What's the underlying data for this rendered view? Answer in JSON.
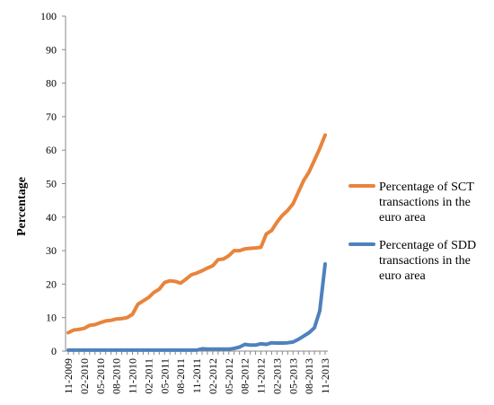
{
  "chart_data": {
    "type": "line",
    "ylabel": "Percentage",
    "ylim": [
      0,
      100
    ],
    "yticks": [
      "0",
      "10",
      "20",
      "30",
      "40",
      "50",
      "60",
      "70",
      "80",
      "90",
      "100"
    ],
    "xtick_labels": [
      "11-2009",
      "02-2010",
      "05-2010",
      "08-2010",
      "11-2010",
      "02-2011",
      "05-2011",
      "08-2011",
      "11-2011",
      "02-2012",
      "05-2012",
      "08-2012",
      "11-2012",
      "02-2013",
      "05-2013",
      "08-2013",
      "11-2013"
    ],
    "x": [
      "11-2009",
      "12-2009",
      "01-2010",
      "02-2010",
      "03-2010",
      "04-2010",
      "05-2010",
      "06-2010",
      "07-2010",
      "08-2010",
      "09-2010",
      "10-2010",
      "11-2010",
      "12-2010",
      "01-2011",
      "02-2011",
      "03-2011",
      "04-2011",
      "05-2011",
      "06-2011",
      "07-2011",
      "08-2011",
      "09-2011",
      "10-2011",
      "11-2011",
      "12-2011",
      "01-2012",
      "02-2012",
      "03-2012",
      "04-2012",
      "05-2012",
      "06-2012",
      "07-2012",
      "08-2012",
      "09-2012",
      "10-2012",
      "11-2012",
      "12-2012",
      "01-2013",
      "02-2013",
      "03-2013",
      "04-2013",
      "05-2013",
      "06-2013",
      "07-2013",
      "08-2013",
      "09-2013",
      "10-2013",
      "11-2013"
    ],
    "grid": false,
    "legend_position": "right",
    "series": [
      {
        "name": "Percentage of SCT transactions in the euro area",
        "color": "#E8843C",
        "values": [
          5.5,
          6.3,
          6.5,
          6.8,
          7.7,
          7.9,
          8.5,
          9.0,
          9.2,
          9.6,
          9.7,
          10.0,
          11.0,
          14.0,
          15.0,
          16.0,
          17.5,
          18.5,
          20.5,
          21.0,
          20.8,
          20.3,
          21.5,
          22.8,
          23.3,
          24.0,
          24.8,
          25.5,
          27.3,
          27.5,
          28.5,
          30.0,
          30.0,
          30.5,
          30.7,
          30.8,
          31.0,
          35.0,
          36.0,
          38.5,
          40.5,
          42.0,
          44.0,
          47.5,
          51.0,
          53.5,
          57.0,
          60.5,
          64.5
        ]
      },
      {
        "name": "Percentage of SDD transactions in the euro area",
        "color": "#4E81BD",
        "values": [
          0.3,
          0.3,
          0.3,
          0.3,
          0.3,
          0.3,
          0.3,
          0.3,
          0.3,
          0.3,
          0.3,
          0.3,
          0.3,
          0.3,
          0.3,
          0.3,
          0.3,
          0.3,
          0.3,
          0.3,
          0.3,
          0.3,
          0.3,
          0.3,
          0.3,
          0.7,
          0.6,
          0.6,
          0.6,
          0.6,
          0.6,
          0.8,
          1.2,
          2.0,
          1.8,
          1.8,
          2.2,
          2.0,
          2.5,
          2.4,
          2.4,
          2.5,
          2.7,
          3.5,
          4.5,
          5.5,
          7.0,
          12.0,
          26.0
        ]
      }
    ]
  }
}
